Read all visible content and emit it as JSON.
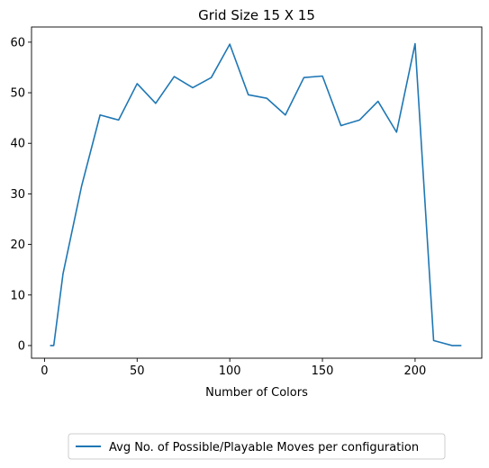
{
  "chart_data": {
    "type": "line",
    "title": "Grid Size 15 X 15",
    "xlabel": "Number of Colors",
    "ylabel": "",
    "xlim": [
      -7,
      236
    ],
    "ylim": [
      -2.5,
      63
    ],
    "x_ticks": [
      0,
      50,
      100,
      150,
      200
    ],
    "y_ticks": [
      0,
      10,
      20,
      30,
      40,
      50,
      60
    ],
    "grid": false,
    "legend_position": "bottom-center",
    "series": [
      {
        "name": "Avg No. of Possible/Playable Moves per configuration",
        "color": "#1f77b4",
        "x": [
          3,
          5,
          10,
          20,
          30,
          40,
          50,
          60,
          70,
          80,
          90,
          100,
          110,
          120,
          130,
          140,
          150,
          160,
          170,
          180,
          190,
          200,
          210,
          220,
          225
        ],
        "y": [
          0,
          0,
          14.2,
          31.5,
          45.6,
          44.6,
          51.8,
          47.9,
          53.2,
          51.0,
          53.0,
          59.6,
          49.6,
          48.9,
          45.6,
          53.0,
          53.3,
          43.5,
          44.6,
          48.3,
          42.2,
          59.7,
          1.0,
          0.0,
          0.0
        ]
      }
    ]
  }
}
